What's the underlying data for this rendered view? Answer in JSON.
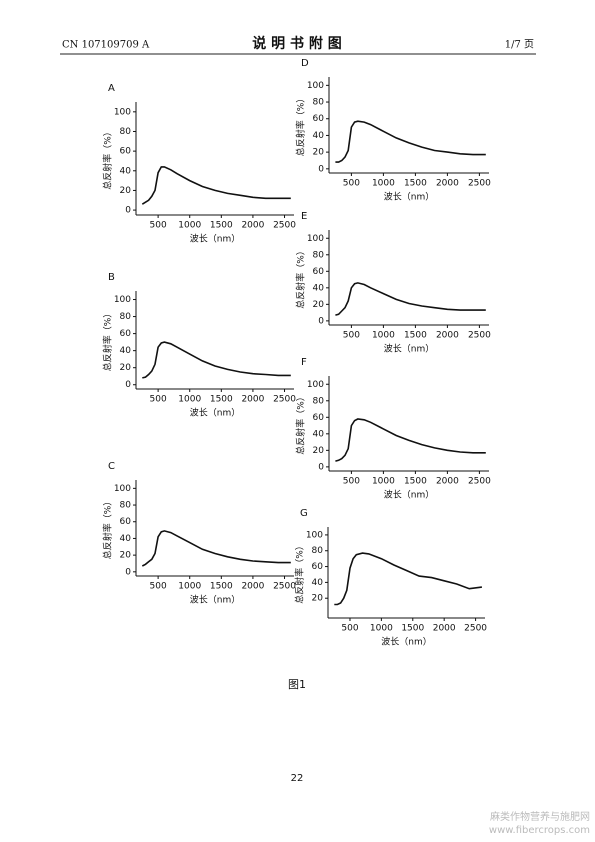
{
  "header": {
    "left": "CN 107109709 A",
    "title": "说 明 书 附 图",
    "right": "1/7 页"
  },
  "figure_caption": "图1",
  "page_number": "22",
  "watermark": [
    "麻类作物营养与施肥网",
    "www.fibercrops.com"
  ],
  "chart_data": [
    {
      "type": "line",
      "panel": "A",
      "xlabel": "波长（nm）",
      "ylabel": "总反射率（%）",
      "x": [
        250,
        300,
        350,
        400,
        450,
        500,
        550,
        600,
        700,
        800,
        1000,
        1200,
        1400,
        1600,
        1800,
        2000,
        2200,
        2400,
        2600
      ],
      "series": [
        {
          "color": "#111111",
          "values": [
            6,
            8,
            10,
            14,
            20,
            38,
            44,
            44,
            41,
            37,
            30,
            24,
            20,
            17,
            15,
            13,
            12,
            12,
            12
          ]
        }
      ],
      "xlim": [
        150,
        2650
      ],
      "ylim": [
        -5,
        110
      ],
      "xticks": [
        500,
        1000,
        1500,
        2000,
        2500
      ],
      "yticks": [
        0,
        20,
        40,
        60,
        80,
        100
      ]
    },
    {
      "type": "line",
      "panel": "B",
      "xlabel": "波长（nm）",
      "ylabel": "总反射率（%）",
      "x": [
        250,
        300,
        350,
        400,
        450,
        500,
        550,
        600,
        700,
        800,
        1000,
        1200,
        1400,
        1600,
        1800,
        2000,
        2200,
        2400,
        2600
      ],
      "series": [
        {
          "color": "#111111",
          "values": [
            8,
            9,
            12,
            16,
            24,
            44,
            49,
            50,
            48,
            44,
            36,
            28,
            22,
            18,
            15,
            13,
            12,
            11,
            11
          ]
        }
      ],
      "xlim": [
        150,
        2650
      ],
      "ylim": [
        -5,
        110
      ],
      "xticks": [
        500,
        1000,
        1500,
        2000,
        2500
      ],
      "yticks": [
        0,
        20,
        40,
        60,
        80,
        100
      ]
    },
    {
      "type": "line",
      "panel": "C",
      "xlabel": "波长（nm）",
      "ylabel": "总反射率（%）",
      "x": [
        250,
        300,
        350,
        400,
        450,
        500,
        550,
        600,
        700,
        800,
        1000,
        1200,
        1400,
        1600,
        1800,
        2000,
        2200,
        2400,
        2600
      ],
      "series": [
        {
          "color": "#111111",
          "values": [
            7,
            9,
            12,
            15,
            22,
            42,
            48,
            49,
            47,
            43,
            35,
            27,
            22,
            18,
            15,
            13,
            12,
            11,
            11
          ]
        }
      ],
      "xlim": [
        150,
        2650
      ],
      "ylim": [
        -5,
        110
      ],
      "xticks": [
        500,
        1000,
        1500,
        2000,
        2500
      ],
      "yticks": [
        0,
        20,
        40,
        60,
        80,
        100
      ]
    },
    {
      "type": "line",
      "panel": "D",
      "xlabel": "波长（nm）",
      "ylabel": "总反射率（%）",
      "x": [
        250,
        300,
        350,
        400,
        450,
        500,
        550,
        600,
        700,
        800,
        1000,
        1200,
        1400,
        1600,
        1800,
        2000,
        2200,
        2400,
        2600
      ],
      "series": [
        {
          "color": "#111111",
          "values": [
            8,
            8,
            10,
            14,
            22,
            50,
            56,
            57,
            56,
            53,
            45,
            37,
            31,
            26,
            22,
            20,
            18,
            17,
            17
          ]
        }
      ],
      "xlim": [
        150,
        2650
      ],
      "ylim": [
        -5,
        110
      ],
      "xticks": [
        500,
        1000,
        1500,
        2000,
        2500
      ],
      "yticks": [
        0,
        20,
        40,
        60,
        80,
        100
      ]
    },
    {
      "type": "line",
      "panel": "E",
      "xlabel": "波长（nm）",
      "ylabel": "总反射率（%）",
      "x": [
        250,
        300,
        350,
        400,
        450,
        500,
        550,
        600,
        700,
        800,
        1000,
        1200,
        1400,
        1600,
        1800,
        2000,
        2200,
        2400,
        2600
      ],
      "series": [
        {
          "color": "#111111",
          "values": [
            7,
            8,
            12,
            16,
            24,
            40,
            45,
            46,
            44,
            40,
            33,
            26,
            21,
            18,
            16,
            14,
            13,
            13,
            13
          ]
        }
      ],
      "xlim": [
        150,
        2650
      ],
      "ylim": [
        -5,
        110
      ],
      "xticks": [
        500,
        1000,
        1500,
        2000,
        2500
      ],
      "yticks": [
        0,
        20,
        40,
        60,
        80,
        100
      ]
    },
    {
      "type": "line",
      "panel": "F",
      "xlabel": "波长（nm）",
      "ylabel": "总反射率（%）",
      "x": [
        250,
        300,
        350,
        400,
        450,
        500,
        550,
        600,
        700,
        800,
        1000,
        1200,
        1400,
        1600,
        1800,
        2000,
        2200,
        2400,
        2600
      ],
      "series": [
        {
          "color": "#111111",
          "values": [
            7,
            8,
            10,
            14,
            22,
            50,
            56,
            58,
            57,
            54,
            46,
            38,
            32,
            27,
            23,
            20,
            18,
            17,
            17
          ]
        }
      ],
      "xlim": [
        150,
        2650
      ],
      "ylim": [
        -5,
        110
      ],
      "xticks": [
        500,
        1000,
        1500,
        2000,
        2500
      ],
      "yticks": [
        0,
        20,
        40,
        60,
        80,
        100
      ]
    },
    {
      "type": "line",
      "panel": "G",
      "xlabel": "波长（nm）",
      "ylabel": "总反射率（%）",
      "x": [
        250,
        300,
        350,
        400,
        450,
        500,
        550,
        600,
        700,
        800,
        1000,
        1200,
        1400,
        1600,
        1800,
        2000,
        2200,
        2400,
        2600
      ],
      "series": [
        {
          "color": "#111111",
          "values": [
            12,
            12,
            14,
            20,
            30,
            58,
            70,
            75,
            77,
            76,
            70,
            62,
            55,
            48,
            46,
            42,
            38,
            32,
            34
          ]
        }
      ],
      "xlim": [
        150,
        2650
      ],
      "ylim": [
        -5,
        110
      ],
      "xticks": [
        500,
        1000,
        1500,
        2000,
        2500
      ],
      "yticks": [
        20,
        40,
        60,
        80,
        100
      ]
    }
  ]
}
